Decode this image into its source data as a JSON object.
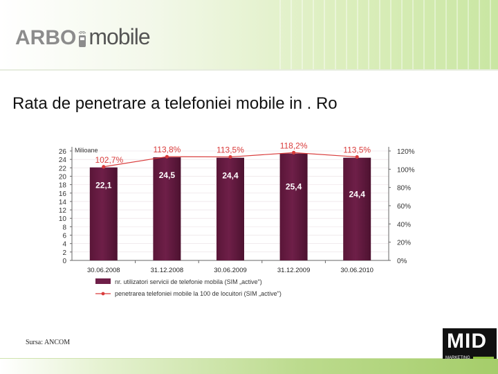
{
  "logo": {
    "part1": "ARBO",
    "part2": "mobile"
  },
  "title": "Rata de penetrare a telefoniei mobile in . Ro",
  "source": "Sursa: ANCOM",
  "mid_logo": {
    "text": "MID",
    "sub": "MARKETING"
  },
  "colors": {
    "bar": "#6e1f48",
    "line": "#d93b3b",
    "grid": "#e8dde2",
    "accent_green": "#8fc23e"
  },
  "chart_data": {
    "type": "bar",
    "categories": [
      "30.06.2008",
      "31.12.2008",
      "30.06.2009",
      "31.12.2009",
      "30.06.2010"
    ],
    "series": [
      {
        "name": "nr. utilizatori servicii de telefonie mobila (SIM „active\")",
        "type": "bar",
        "axis": "left",
        "values": [
          22.1,
          24.5,
          24.4,
          25.4,
          24.4
        ],
        "labels": [
          "22,1",
          "24,5",
          "24,4",
          "25,4",
          "24,4"
        ]
      },
      {
        "name": "penetrarea telefoniei mobile la 100 de locuitori (SIM „active\")",
        "type": "line",
        "axis": "right",
        "values": [
          102.7,
          113.8,
          113.5,
          118.2,
          113.5
        ],
        "labels": [
          "102,7%",
          "113,8%",
          "113,5%",
          "118,2%",
          "113,5%"
        ]
      }
    ],
    "ylabel": "Milioane",
    "ylim": [
      0,
      26
    ],
    "yticks": [
      "0",
      "2",
      "4",
      "6",
      "8",
      "10",
      "12",
      "14",
      "16",
      "18",
      "20",
      "22",
      "24",
      "26"
    ],
    "y2lim": [
      0,
      120
    ],
    "y2ticks": [
      "0%",
      "20%",
      "40%",
      "60%",
      "80%",
      "100%",
      "120%"
    ],
    "legend_position": "bottom"
  }
}
